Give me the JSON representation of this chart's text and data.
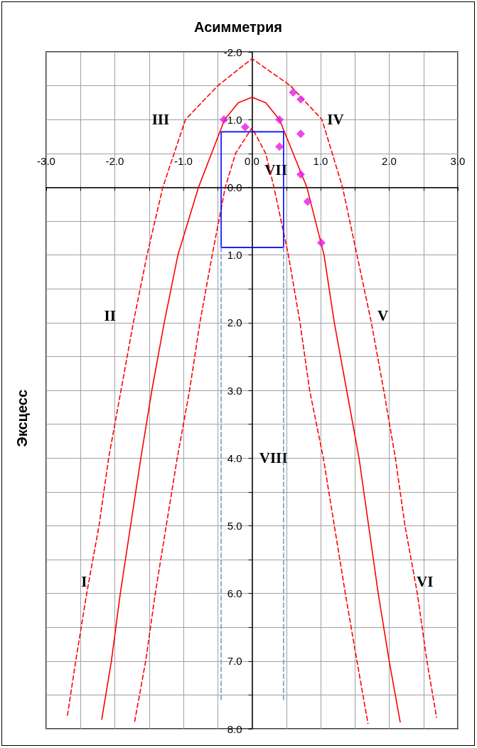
{
  "chart_data": {
    "type": "line",
    "title": "Асимметрия",
    "ylabel": "Эксцесс",
    "xlim": [
      -3,
      3
    ],
    "xticks": [
      {
        "value": -3,
        "label": "-3.0"
      },
      {
        "value": -2.5,
        "label": null
      },
      {
        "value": -2,
        "label": "-2.0"
      },
      {
        "value": -1.5,
        "label": null
      },
      {
        "value": -1,
        "label": "-1.0"
      },
      {
        "value": -0.5,
        "label": null
      },
      {
        "value": 0,
        "label": "0.0"
      },
      {
        "value": 0.5,
        "label": null
      },
      {
        "value": 1,
        "label": "1.0"
      },
      {
        "value": 1.5,
        "label": null
      },
      {
        "value": 2,
        "label": "2.0"
      },
      {
        "value": 2.5,
        "label": null
      },
      {
        "value": 3,
        "label": "3.0"
      }
    ],
    "ylim": [
      8,
      -2
    ],
    "yticks": [
      {
        "value": -2,
        "label": "-2.0"
      },
      {
        "value": -1.5,
        "label": null
      },
      {
        "value": -1,
        "label": "-1.0"
      },
      {
        "value": -0.5,
        "label": null
      },
      {
        "value": 0,
        "label": "0.0"
      },
      {
        "value": 0.5,
        "label": null
      },
      {
        "value": 1,
        "label": "1.0"
      },
      {
        "value": 1.5,
        "label": null
      },
      {
        "value": 2,
        "label": "2.0"
      },
      {
        "value": 2.5,
        "label": null
      },
      {
        "value": 3,
        "label": "3.0"
      },
      {
        "value": 3.5,
        "label": null
      },
      {
        "value": 4,
        "label": "4.0"
      },
      {
        "value": 4.5,
        "label": null
      },
      {
        "value": 5,
        "label": "5.0"
      },
      {
        "value": 5.5,
        "label": null
      },
      {
        "value": 6,
        "label": "6.0"
      },
      {
        "value": 6.5,
        "label": null
      },
      {
        "value": 7,
        "label": "7.0"
      },
      {
        "value": 7.5,
        "label": null
      },
      {
        "value": 8,
        "label": "8.0"
      }
    ],
    "grid": true,
    "series": [
      {
        "color": "#ff0000",
        "line_style": "solid",
        "marker": "none",
        "x": [
          -2.19,
          -2.05,
          -1.92,
          -1.77,
          -1.62,
          -1.46,
          -1.28,
          -1.08,
          -0.78,
          -0.4,
          -0.2,
          0,
          0.2,
          0.4,
          0.8,
          1.05,
          1.2,
          1.38,
          1.56,
          1.7,
          1.84,
          2.0,
          2.16
        ],
        "values": [
          7.86,
          7.0,
          6.0,
          5.0,
          4.0,
          3.0,
          2.0,
          1.0,
          0.0,
          -1.0,
          -1.25,
          -1.33,
          -1.25,
          -1.0,
          0.0,
          1.0,
          2.0,
          3.0,
          4.0,
          5.0,
          6.0,
          7.0,
          7.9
        ]
      },
      {
        "color": "#ff0000",
        "line_style": "dashed",
        "marker": "none",
        "x": [
          -2.69,
          -2.57,
          -2.41,
          -2.23,
          -2.09,
          -1.91,
          -1.73,
          -1.53,
          -1.3,
          -0.97,
          -0.5,
          0,
          0.56,
          1.02,
          1.32,
          1.53,
          1.74,
          1.92,
          2.09,
          2.23,
          2.41,
          2.55,
          2.69
        ],
        "values": [
          7.8,
          7.0,
          6.0,
          5.0,
          4.0,
          3.0,
          2.0,
          1.0,
          0.0,
          -1.0,
          -1.5,
          -1.9,
          -1.5,
          -1.0,
          0.0,
          1.0,
          2.0,
          3.0,
          4.0,
          5.0,
          6.0,
          7.0,
          7.83
        ]
      },
      {
        "color": "#ff0000",
        "line_style": "dashed",
        "marker": "none",
        "x": [
          -1.71,
          -1.55,
          -1.41,
          -1.25,
          -1.09,
          -0.91,
          -0.76,
          -0.58,
          -0.39,
          -0.24,
          0,
          0.2,
          0.32,
          0.53,
          0.7,
          0.84,
          1.04,
          1.2,
          1.36,
          1.53,
          1.69
        ],
        "values": [
          7.89,
          7.0,
          6.0,
          5.0,
          4.0,
          3.0,
          2.0,
          1.0,
          0.0,
          -0.5,
          -0.88,
          -0.5,
          0.0,
          1.0,
          2.0,
          3.0,
          4.0,
          5.0,
          6.0,
          7.0,
          7.92
        ]
      },
      {
        "color": "#0000ff",
        "line_style": "solid",
        "marker": "none",
        "x": [
          -0.45,
          -0.45,
          0.46
        ],
        "values": [
          0.89,
          -0.82,
          -0.82
        ]
      },
      {
        "color": "#0000ff",
        "line_style": "solid",
        "marker": "none",
        "x": [
          -0.45,
          0.46,
          0.46
        ],
        "values": [
          0.89,
          0.89,
          -0.82
        ]
      },
      {
        "color": "#6f9bd1",
        "line_style": "dashed",
        "marker": "none",
        "x": [
          -0.45,
          -0.45
        ],
        "values": [
          0.89,
          7.57
        ]
      },
      {
        "color": "#6f9bd1",
        "line_style": "dashed",
        "marker": "none",
        "x": [
          0.46,
          0.46
        ],
        "values": [
          0.89,
          7.6
        ]
      },
      {
        "type": "scatter",
        "color": "#e619e6",
        "marker": "diamond",
        "x": [
          -0.41,
          -0.1,
          0.4,
          0.6,
          0.71,
          0.71,
          0.4,
          0.71,
          0.81,
          1.01
        ],
        "values": [
          -1.0,
          -0.89,
          -1.0,
          -1.4,
          -1.3,
          -0.79,
          -0.6,
          -0.19,
          0.21,
          0.82
        ]
      }
    ],
    "annotations": [
      "I",
      "II",
      "III",
      "IV",
      "V",
      "VI",
      "VII",
      "VIII"
    ]
  }
}
